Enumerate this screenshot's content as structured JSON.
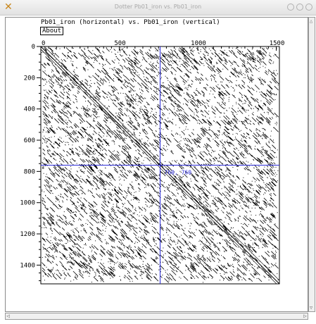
{
  "window": {
    "title": "Dotter Pb01_iron vs. Pb01_iron",
    "app_icon": "x-icon",
    "controls": [
      "minimize-icon",
      "maximize-icon",
      "close-icon"
    ]
  },
  "plot": {
    "heading": "Pb01_iron (horizontal) vs. Pb01_iron (vertical)",
    "about_label": "About",
    "x_ticks": [
      "0",
      "500",
      "1000",
      "1500"
    ],
    "y_ticks": [
      "0",
      "200",
      "400",
      "600",
      "800",
      "1000",
      "1200",
      "1400"
    ],
    "crosshair_label": "760, 760",
    "axis_color": "#000000",
    "crosshair_color": "#2a2ad8"
  },
  "chart_data": {
    "type": "scatter",
    "title": "Pb01_iron (horizontal) vs. Pb01_iron (vertical)",
    "x_range": [
      0,
      1520
    ],
    "y_range": [
      0,
      1520
    ],
    "y_inverted": true,
    "crosshair": {
      "x": 760,
      "y": 760
    },
    "main_diagonal": {
      "from": [
        0,
        0
      ],
      "to": [
        1520,
        1520
      ]
    }
  }
}
